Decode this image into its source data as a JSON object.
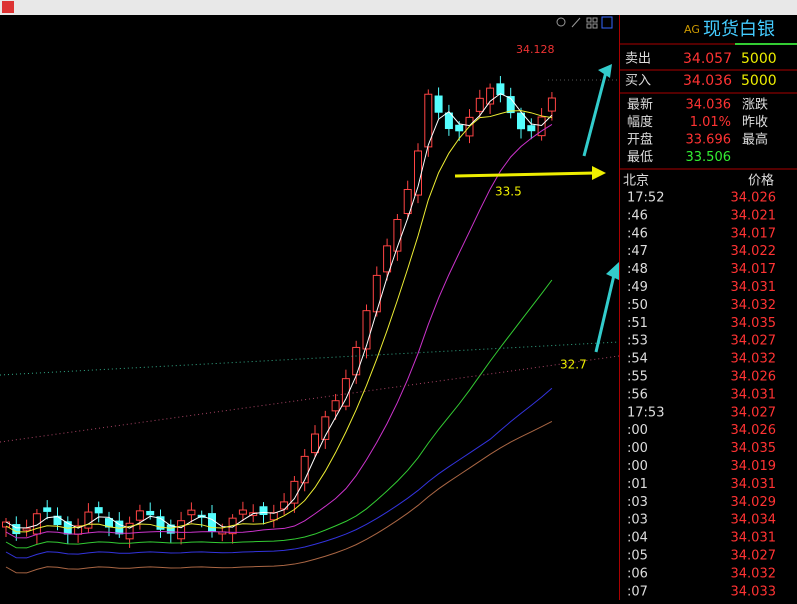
{
  "chart": {
    "high_label": "34.128",
    "level_labels": [
      "33.5",
      "32.7"
    ]
  },
  "quote": {
    "code": "AG",
    "name": "现货白银",
    "ask": {
      "label": "卖出",
      "price": "34.057",
      "volume": "5000"
    },
    "bid": {
      "label": "买入",
      "price": "34.036",
      "volume": "5000"
    },
    "stats": [
      {
        "label": "最新",
        "value": "34.036",
        "right": "涨跌"
      },
      {
        "label": "幅度",
        "value": "1.01%",
        "right": "昨收"
      },
      {
        "label": "开盘",
        "value": "33.696",
        "right": "最高"
      },
      {
        "label": "最低",
        "value": "33.506"
      }
    ]
  },
  "ticks": {
    "header": [
      "北京",
      "价格"
    ],
    "rows": [
      [
        "17:52",
        "34.026"
      ],
      [
        ":46",
        "34.021"
      ],
      [
        ":46",
        "34.017"
      ],
      [
        ":47",
        "34.022"
      ],
      [
        ":48",
        "34.017"
      ],
      [
        ":49",
        "34.031"
      ],
      [
        ":50",
        "34.032"
      ],
      [
        ":51",
        "34.035"
      ],
      [
        ":53",
        "34.027"
      ],
      [
        ":54",
        "34.032"
      ],
      [
        ":55",
        "34.026"
      ],
      [
        ":56",
        "34.031"
      ],
      [
        "17:53",
        "34.027"
      ],
      [
        ":00",
        "34.026"
      ],
      [
        ":00",
        "34.035"
      ],
      [
        ":00",
        "34.019"
      ],
      [
        ":01",
        "34.031"
      ],
      [
        ":03",
        "34.029"
      ],
      [
        ":03",
        "34.034"
      ],
      [
        ":04",
        "34.031"
      ],
      [
        ":05",
        "34.027"
      ],
      [
        ":06",
        "34.032"
      ],
      [
        ":07",
        "34.033"
      ]
    ]
  }
}
